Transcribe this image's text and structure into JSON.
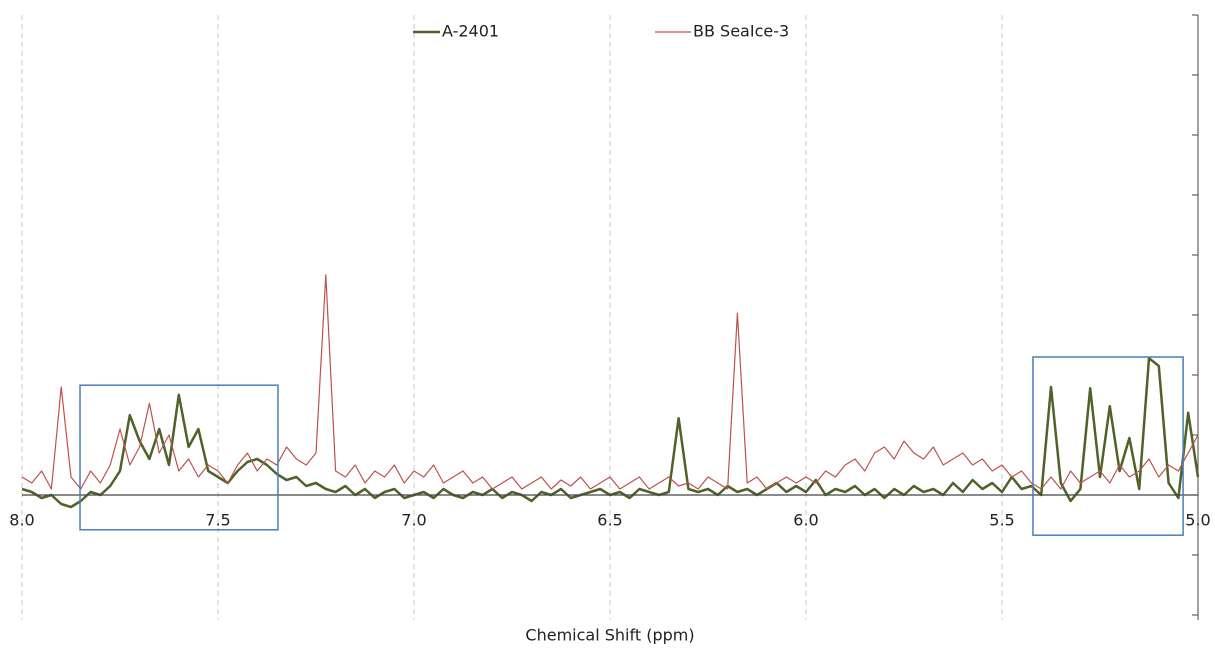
{
  "chart_data": {
    "type": "line",
    "xlabel": "Chemical Shift (ppm)",
    "x": [
      8,
      7.975,
      7.95,
      7.925,
      7.9,
      7.875,
      7.85,
      7.825,
      7.8,
      7.775,
      7.75,
      7.725,
      7.7,
      7.675,
      7.65,
      7.625,
      7.6,
      7.575,
      7.55,
      7.525,
      7.5,
      7.475,
      7.45,
      7.425,
      7.4,
      7.375,
      7.35,
      7.325,
      7.3,
      7.275,
      7.25,
      7.225,
      7.2,
      7.175,
      7.15,
      7.125,
      7.1,
      7.075,
      7.05,
      7.025,
      7.0,
      6.975,
      6.95,
      6.925,
      6.9,
      6.875,
      6.85,
      6.825,
      6.8,
      6.775,
      6.75,
      6.725,
      6.7,
      6.675,
      6.65,
      6.625,
      6.6,
      6.575,
      6.55,
      6.525,
      6.5,
      6.475,
      6.45,
      6.425,
      6.4,
      6.375,
      6.35,
      6.325,
      6.3,
      6.275,
      6.25,
      6.225,
      6.2,
      6.175,
      6.15,
      6.125,
      6.1,
      6.075,
      6.05,
      6.025,
      6.0,
      5.975,
      5.95,
      5.925,
      5.9,
      5.875,
      5.85,
      5.825,
      5.8,
      5.775,
      5.75,
      5.725,
      5.7,
      5.675,
      5.65,
      5.625,
      5.6,
      5.575,
      5.55,
      5.525,
      5.5,
      5.475,
      5.45,
      5.425,
      5.4,
      5.375,
      5.35,
      5.325,
      5.3,
      5.275,
      5.25,
      5.225,
      5.2,
      5.175,
      5.15,
      5.125,
      5.1,
      5.075,
      5.05,
      5.025,
      5.0
    ],
    "series": [
      {
        "name": "A-2401",
        "color": "#4f6228",
        "width": 2.5,
        "values": [
          0.1,
          0.05,
          -0.05,
          0.0,
          -0.15,
          -0.2,
          -0.1,
          0.05,
          0.0,
          0.15,
          0.4,
          1.33,
          0.9,
          0.6,
          1.1,
          0.5,
          1.67,
          0.8,
          1.1,
          0.4,
          0.3,
          0.2,
          0.4,
          0.55,
          0.6,
          0.5,
          0.35,
          0.25,
          0.3,
          0.15,
          0.2,
          0.1,
          0.05,
          0.15,
          0.0,
          0.1,
          -0.05,
          0.05,
          0.1,
          -0.05,
          0.0,
          0.05,
          -0.05,
          0.1,
          0.0,
          -0.05,
          0.05,
          0.0,
          0.1,
          -0.05,
          0.05,
          0.0,
          -0.1,
          0.05,
          0.0,
          0.1,
          -0.05,
          0.0,
          0.05,
          0.1,
          0.0,
          0.05,
          -0.05,
          0.1,
          0.05,
          0.0,
          0.05,
          1.28,
          0.1,
          0.05,
          0.1,
          0.0,
          0.15,
          0.05,
          0.1,
          0.0,
          0.1,
          0.2,
          0.05,
          0.15,
          0.05,
          0.25,
          0.0,
          0.1,
          0.05,
          0.15,
          0.0,
          0.1,
          -0.05,
          0.1,
          0.0,
          0.15,
          0.05,
          0.1,
          0.0,
          0.2,
          0.05,
          0.25,
          0.1,
          0.2,
          0.05,
          0.3,
          0.1,
          0.15,
          0.0,
          1.8,
          0.2,
          -0.1,
          0.1,
          1.78,
          0.3,
          1.48,
          0.4,
          0.95,
          0.1,
          2.28,
          2.15,
          0.2,
          -0.05,
          1.37,
          0.3
        ]
      },
      {
        "name": "BB SeaIce-3",
        "color": "#c0504d",
        "width": 1.2,
        "values": [
          0.3,
          0.2,
          0.4,
          0.1,
          1.8,
          0.3,
          0.1,
          0.4,
          0.2,
          0.5,
          1.1,
          0.5,
          0.8,
          1.53,
          0.7,
          1.0,
          0.4,
          0.6,
          0.3,
          0.5,
          0.4,
          0.2,
          0.5,
          0.7,
          0.4,
          0.6,
          0.5,
          0.8,
          0.6,
          0.5,
          0.7,
          3.67,
          0.4,
          0.3,
          0.5,
          0.2,
          0.4,
          0.3,
          0.5,
          0.2,
          0.4,
          0.3,
          0.5,
          0.2,
          0.3,
          0.4,
          0.2,
          0.3,
          0.1,
          0.2,
          0.3,
          0.1,
          0.2,
          0.3,
          0.1,
          0.25,
          0.15,
          0.3,
          0.1,
          0.2,
          0.3,
          0.1,
          0.2,
          0.3,
          0.1,
          0.2,
          0.3,
          0.15,
          0.2,
          0.1,
          0.3,
          0.2,
          0.1,
          3.03,
          0.2,
          0.3,
          0.1,
          0.2,
          0.3,
          0.2,
          0.3,
          0.2,
          0.4,
          0.3,
          0.5,
          0.6,
          0.4,
          0.7,
          0.8,
          0.6,
          0.9,
          0.7,
          0.6,
          0.8,
          0.5,
          0.6,
          0.7,
          0.5,
          0.6,
          0.4,
          0.5,
          0.3,
          0.4,
          0.2,
          0.1,
          0.3,
          0.1,
          0.4,
          0.2,
          0.3,
          0.4,
          0.2,
          0.5,
          0.3,
          0.4,
          0.6,
          0.3,
          0.5,
          0.4,
          0.7,
          1.0
        ]
      }
    ],
    "xlim": [
      8,
      5
    ],
    "xticks": [
      {
        "value": 8,
        "label": "8.0"
      },
      7.5,
      {
        "value": 7,
        "label": "7.0"
      },
      6.5,
      {
        "value": 6,
        "label": "6.0"
      },
      5.5,
      {
        "value": 5,
        "label": "5.0"
      }
    ],
    "ylim": [
      -2,
      8
    ],
    "yticks": [
      -2,
      -1,
      0,
      1,
      2,
      3,
      4,
      5,
      6,
      7,
      8
    ],
    "grid": true,
    "legend": "top",
    "highlight_color": "#4a7ebb",
    "highlight_boxes": [
      {
        "xlim": [
          7.852,
          7.347
        ],
        "ylim": [
          -0.58,
          1.83
        ]
      },
      {
        "xlim": [
          5.421,
          5.038
        ],
        "ylim": [
          -0.67,
          2.3
        ]
      }
    ]
  }
}
